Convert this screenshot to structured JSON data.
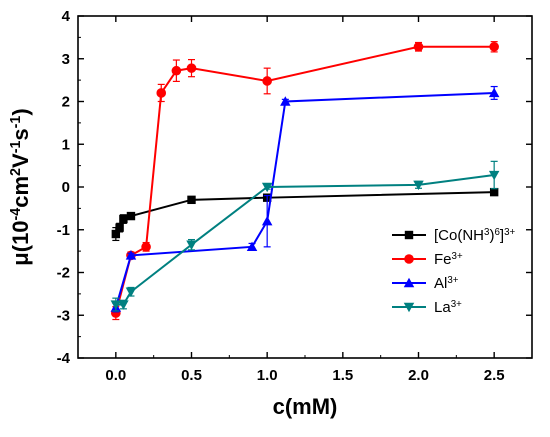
{
  "chart_data": {
    "type": "line",
    "xlabel": "c(mM)",
    "ylabel": {
      "parts": [
        "μ(10",
        "-4",
        "cm",
        "2",
        "V",
        "-1",
        "s",
        "-1",
        ")"
      ]
    },
    "xlim": [
      -0.25,
      2.75
    ],
    "ylim": [
      -4,
      4
    ],
    "xticks": [
      0.0,
      0.5,
      1.0,
      1.5,
      2.0,
      2.5
    ],
    "xtick_labels": [
      "0.0",
      "0.5",
      "1.0",
      "1.5",
      "2.0",
      "2.5"
    ],
    "yticks": [
      -4,
      -3,
      -2,
      -1,
      0,
      1,
      2,
      3,
      4
    ],
    "ytick_labels": [
      "-4",
      "-3",
      "-2",
      "-1",
      "0",
      "1",
      "2",
      "3",
      "4"
    ],
    "grid": false,
    "legend_position": "right-center",
    "series": [
      {
        "name": "[Co(NH3)6]3+",
        "legend_parts": [
          "[Co(NH",
          "3",
          ")",
          "6",
          "]",
          "3+"
        ],
        "color": "#000000",
        "marker": "square",
        "x": [
          0.0,
          0.025,
          0.05,
          0.1,
          0.5,
          1.0,
          2.5
        ],
        "y": [
          -1.1,
          -0.95,
          -0.75,
          -0.68,
          -0.3,
          -0.25,
          -0.12
        ],
        "err": [
          0.15,
          0.1,
          0.1,
          0.05,
          0.05,
          0.05,
          0.05
        ]
      },
      {
        "name": "Fe3+",
        "legend_parts": [
          "Fe",
          "3+"
        ],
        "color": "#ff0000",
        "marker": "circle",
        "x": [
          0.0,
          0.1,
          0.2,
          0.3,
          0.4,
          0.5,
          1.0,
          2.0,
          2.5
        ],
        "y": [
          -2.95,
          -1.6,
          -1.4,
          2.2,
          2.72,
          2.78,
          2.48,
          3.28,
          3.28
        ],
        "err": [
          0.15,
          0.08,
          0.1,
          0.2,
          0.25,
          0.2,
          0.3,
          0.1,
          0.12
        ]
      },
      {
        "name": "Al3+",
        "legend_parts": [
          "Al",
          "3+"
        ],
        "color": "#0000ff",
        "marker": "triangle-up",
        "x": [
          0.0,
          0.1,
          0.9,
          1.0,
          1.12,
          2.5
        ],
        "y": [
          -2.82,
          -1.6,
          -1.4,
          -0.8,
          2.0,
          2.2
        ],
        "err": [
          0.1,
          0.05,
          0.08,
          0.6,
          0.05,
          0.15
        ]
      },
      {
        "name": "La3+",
        "legend_parts": [
          "La",
          "3+"
        ],
        "color": "#008080",
        "marker": "triangle-down",
        "x": [
          0.0,
          0.05,
          0.1,
          0.5,
          1.0,
          2.0,
          2.5
        ],
        "y": [
          -2.75,
          -2.75,
          -2.45,
          -1.35,
          0.0,
          0.05,
          0.28
        ],
        "err": [
          0.15,
          0.1,
          0.1,
          0.12,
          0.05,
          0.08,
          0.32
        ]
      }
    ]
  }
}
